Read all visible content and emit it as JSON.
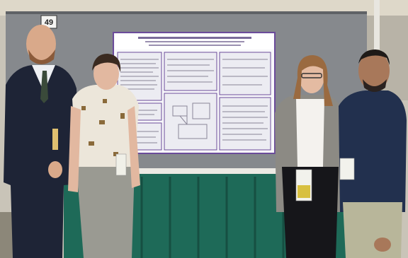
{
  "sign": {
    "number": "49"
  }
}
